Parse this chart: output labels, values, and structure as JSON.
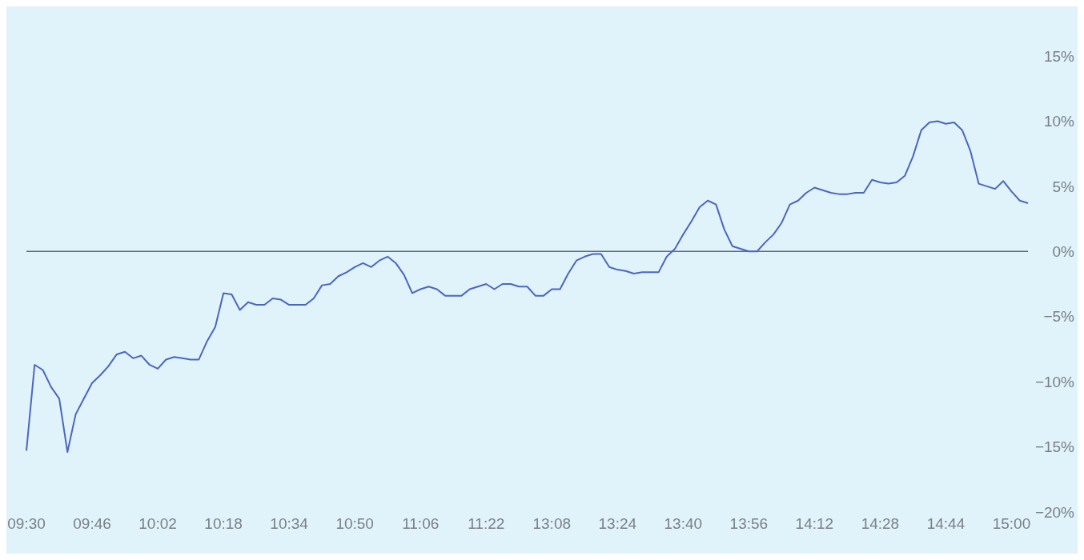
{
  "chart_data": {
    "type": "line",
    "categories": [
      "09:30",
      null,
      null,
      null,
      null,
      null,
      null,
      null,
      "09:46",
      null,
      null,
      null,
      null,
      null,
      null,
      null,
      "10:02",
      null,
      null,
      null,
      null,
      null,
      null,
      null,
      "10:18",
      null,
      null,
      null,
      null,
      null,
      null,
      null,
      "10:34",
      null,
      null,
      null,
      null,
      null,
      null,
      null,
      "10:50",
      null,
      null,
      null,
      null,
      null,
      null,
      null,
      "11:06",
      null,
      null,
      null,
      null,
      null,
      null,
      null,
      "11:22",
      null,
      null,
      null,
      null,
      null,
      null,
      null,
      "13:08",
      null,
      null,
      null,
      null,
      null,
      null,
      null,
      "13:24",
      null,
      null,
      null,
      null,
      null,
      null,
      null,
      "13:40",
      null,
      null,
      null,
      null,
      null,
      null,
      null,
      "13:56",
      null,
      null,
      null,
      null,
      null,
      null,
      null,
      "14:12",
      null,
      null,
      null,
      null,
      null,
      null,
      null,
      "14:28",
      null,
      null,
      null,
      null,
      null,
      null,
      null,
      "14:44",
      null,
      null,
      null,
      null,
      null,
      null,
      null,
      "15:00",
      null,
      null
    ],
    "series": [
      {
        "color": "#4a67c0",
        "values": [
          -15.3,
          -8.7,
          -9.1,
          -10.4,
          -11.3,
          -15.4,
          -12.5,
          -11.3,
          -10.1,
          -9.5,
          -8.8,
          -7.9,
          -7.7,
          -8.2,
          -8.0,
          -8.7,
          -9.0,
          -8.3,
          -8.1,
          -8.2,
          -8.3,
          -8.3,
          -6.9,
          -5.8,
          -3.2,
          -3.3,
          -4.5,
          -3.9,
          -4.1,
          -4.1,
          -3.6,
          -3.7,
          -4.1,
          -4.1,
          -4.1,
          -3.6,
          -2.6,
          -2.5,
          -1.9,
          -1.6,
          -1.2,
          -0.9,
          -1.2,
          -0.7,
          -0.4,
          -0.9,
          -1.8,
          -3.2,
          -2.9,
          -2.7,
          -2.9,
          -3.4,
          -3.4,
          -3.4,
          -2.9,
          -2.7,
          -2.5,
          -2.9,
          -2.5,
          -2.5,
          -2.7,
          -2.7,
          -3.4,
          -3.4,
          -2.9,
          -2.9,
          -1.7,
          -0.7,
          -0.4,
          -0.2,
          -0.2,
          -1.2,
          -1.4,
          -1.5,
          -1.7,
          -1.6,
          -1.6,
          -1.6,
          -0.4,
          0.2,
          1.3,
          2.3,
          3.4,
          3.9,
          3.6,
          1.7,
          0.4,
          0.2,
          0,
          0,
          0.7,
          1.3,
          2.2,
          3.6,
          3.9,
          4.5,
          4.9,
          4.7,
          4.5,
          4.4,
          4.4,
          4.5,
          4.5,
          5.5,
          5.3,
          5.2,
          5.3,
          5.8,
          7.3,
          9.3,
          9.9,
          10.0,
          9.8,
          9.9,
          9.3,
          7.7,
          5.2,
          5.0,
          4.8,
          5.4,
          4.6,
          3.9,
          3.7
        ]
      }
    ],
    "ylim": [
      -20,
      15
    ],
    "yticks": [
      {
        "value": 15,
        "label": "15%"
      },
      {
        "value": 10,
        "label": "10%"
      },
      {
        "value": 5,
        "label": "5%"
      },
      {
        "value": 0,
        "label": "0%"
      },
      {
        "value": -5,
        "label": "−5%"
      },
      {
        "value": -10,
        "label": "−10%"
      },
      {
        "value": -15,
        "label": "−15%"
      },
      {
        "value": -20,
        "label": "−20%"
      }
    ],
    "ref_lines": [
      {
        "axis": "y",
        "value": 0,
        "color": "#5c6b7b"
      }
    ],
    "marker": "none",
    "line_style": "solid"
  }
}
